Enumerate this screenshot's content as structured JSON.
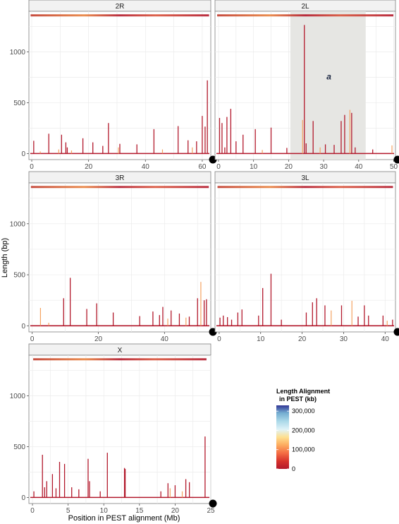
{
  "chart_data": {
    "type": "bar",
    "ylabel": "Length (bp)",
    "xlabel": "Position in PEST alignment (Mb)",
    "yticks": [
      0,
      500,
      1000
    ],
    "legend": {
      "title_lines": [
        "Length Alignment",
        "in PEST (kb)"
      ],
      "ticks": [
        "0",
        "100,000",
        "200,000",
        "300,000"
      ],
      "tick_values": [
        0,
        100000,
        200000,
        300000
      ],
      "max": 330000,
      "placement": "right"
    },
    "panels": [
      {
        "name": "2R",
        "xlim": [
          -1,
          63
        ],
        "ylim": [
          -60,
          1400
        ],
        "xticks": [
          0,
          20,
          40,
          60
        ],
        "top_band_y": 1360,
        "shaded": null,
        "annotation": null,
        "bars": [
          {
            "x": 0.7,
            "y": 125
          },
          {
            "x": 6.0,
            "y": 195
          },
          {
            "x": 10.5,
            "y": 185
          },
          {
            "x": 12.0,
            "y": 110
          },
          {
            "x": 12.5,
            "y": 60
          },
          {
            "x": 18.0,
            "y": 150
          },
          {
            "x": 21.5,
            "y": 110
          },
          {
            "x": 25.0,
            "y": 75
          },
          {
            "x": 27.0,
            "y": 300
          },
          {
            "x": 31.0,
            "y": 95
          },
          {
            "x": 37.0,
            "y": 90
          },
          {
            "x": 43.0,
            "y": 240
          },
          {
            "x": 51.5,
            "y": 270
          },
          {
            "x": 55.0,
            "y": 130
          },
          {
            "x": 58.0,
            "y": 120
          },
          {
            "x": 60.0,
            "y": 370
          },
          {
            "x": 61.0,
            "y": 265
          },
          {
            "x": 61.8,
            "y": 720
          }
        ],
        "light_bars": [
          {
            "x": 3.0,
            "y": 20
          },
          {
            "x": 9.5,
            "y": 40
          },
          {
            "x": 14.0,
            "y": 30
          },
          {
            "x": 30.5,
            "y": 60
          },
          {
            "x": 46.0,
            "y": 40
          },
          {
            "x": 56.5,
            "y": 60
          }
        ]
      },
      {
        "name": "2L",
        "xlim": [
          -1,
          50.5
        ],
        "ylim": [
          -60,
          1400
        ],
        "xticks": [
          0,
          10,
          20,
          30,
          40,
          50
        ],
        "top_band_y": 1360,
        "shaded": [
          20.5,
          42
        ],
        "annotation": {
          "text": "a",
          "x": 31.5,
          "y": 730
        },
        "bars": [
          {
            "x": 0.3,
            "y": 350
          },
          {
            "x": 1.0,
            "y": 300
          },
          {
            "x": 1.8,
            "y": 60
          },
          {
            "x": 2.4,
            "y": 360
          },
          {
            "x": 3.5,
            "y": 440
          },
          {
            "x": 5.0,
            "y": 120
          },
          {
            "x": 7.0,
            "y": 185
          },
          {
            "x": 10.5,
            "y": 240
          },
          {
            "x": 15.0,
            "y": 255
          },
          {
            "x": 19.5,
            "y": 55
          },
          {
            "x": 24.5,
            "y": 1265
          },
          {
            "x": 25.0,
            "y": 100
          },
          {
            "x": 27.0,
            "y": 320
          },
          {
            "x": 30.5,
            "y": 90
          },
          {
            "x": 33.0,
            "y": 85
          },
          {
            "x": 35.0,
            "y": 320
          },
          {
            "x": 36.0,
            "y": 380
          },
          {
            "x": 38.0,
            "y": 400
          },
          {
            "x": 39.0,
            "y": 60
          },
          {
            "x": 44.0,
            "y": 40
          }
        ],
        "light_bars": [
          {
            "x": 12.5,
            "y": 35
          },
          {
            "x": 24.0,
            "y": 330
          },
          {
            "x": 29.0,
            "y": 60
          },
          {
            "x": 37.5,
            "y": 430
          },
          {
            "x": 49.5,
            "y": 80
          }
        ]
      },
      {
        "name": "3R",
        "xlim": [
          -1,
          54
        ],
        "ylim": [
          -60,
          1400
        ],
        "xticks": [
          0,
          20,
          40
        ],
        "top_band_y": 1360,
        "shaded": null,
        "annotation": null,
        "bars": [
          {
            "x": 9.5,
            "y": 270
          },
          {
            "x": 11.5,
            "y": 470
          },
          {
            "x": 16.5,
            "y": 165
          },
          {
            "x": 19.5,
            "y": 220
          },
          {
            "x": 24.5,
            "y": 130
          },
          {
            "x": 32.5,
            "y": 95
          },
          {
            "x": 36.5,
            "y": 140
          },
          {
            "x": 38.5,
            "y": 105
          },
          {
            "x": 39.5,
            "y": 185
          },
          {
            "x": 42.0,
            "y": 150
          },
          {
            "x": 44.5,
            "y": 120
          },
          {
            "x": 47.5,
            "y": 90
          },
          {
            "x": 50.0,
            "y": 270
          },
          {
            "x": 52.0,
            "y": 250
          },
          {
            "x": 52.7,
            "y": 260
          }
        ],
        "light_bars": [
          {
            "x": 2.5,
            "y": 175
          },
          {
            "x": 5.0,
            "y": 30
          },
          {
            "x": 41.0,
            "y": 70
          },
          {
            "x": 46.5,
            "y": 80
          },
          {
            "x": 51.0,
            "y": 430
          }
        ]
      },
      {
        "name": "3L",
        "xlim": [
          -1,
          42.5
        ],
        "ylim": [
          -60,
          1400
        ],
        "xticks": [
          0,
          10,
          20,
          30,
          40
        ],
        "top_band_y": 1360,
        "shaded": null,
        "annotation": null,
        "bars": [
          {
            "x": 0.2,
            "y": 80
          },
          {
            "x": 1.0,
            "y": 100
          },
          {
            "x": 2.0,
            "y": 85
          },
          {
            "x": 3.0,
            "y": 60
          },
          {
            "x": 4.5,
            "y": 130
          },
          {
            "x": 5.5,
            "y": 160
          },
          {
            "x": 9.5,
            "y": 100
          },
          {
            "x": 10.5,
            "y": 370
          },
          {
            "x": 12.5,
            "y": 510
          },
          {
            "x": 15.0,
            "y": 60
          },
          {
            "x": 21.0,
            "y": 130
          },
          {
            "x": 22.5,
            "y": 230
          },
          {
            "x": 23.5,
            "y": 270
          },
          {
            "x": 25.5,
            "y": 200
          },
          {
            "x": 29.5,
            "y": 200
          },
          {
            "x": 33.5,
            "y": 90
          },
          {
            "x": 35.0,
            "y": 200
          },
          {
            "x": 36.0,
            "y": 100
          },
          {
            "x": 39.5,
            "y": 100
          },
          {
            "x": 41.8,
            "y": 60
          }
        ],
        "light_bars": [
          {
            "x": 27.0,
            "y": 150
          },
          {
            "x": 32.0,
            "y": 245
          },
          {
            "x": 40.5,
            "y": 50
          }
        ]
      },
      {
        "name": "X",
        "xlim": [
          -0.5,
          25
        ],
        "ylim": [
          -60,
          1400
        ],
        "xticks": [
          0,
          5,
          10,
          15,
          20,
          25
        ],
        "top_band_y": 1360,
        "shaded": null,
        "annotation": null,
        "bars": [
          {
            "x": 0.2,
            "y": 60
          },
          {
            "x": 1.4,
            "y": 420
          },
          {
            "x": 1.7,
            "y": 100
          },
          {
            "x": 2.0,
            "y": 160
          },
          {
            "x": 2.8,
            "y": 230
          },
          {
            "x": 3.3,
            "y": 90
          },
          {
            "x": 3.8,
            "y": 350
          },
          {
            "x": 4.5,
            "y": 330
          },
          {
            "x": 5.5,
            "y": 100
          },
          {
            "x": 6.5,
            "y": 80
          },
          {
            "x": 7.8,
            "y": 380
          },
          {
            "x": 8.0,
            "y": 160
          },
          {
            "x": 9.5,
            "y": 60
          },
          {
            "x": 10.5,
            "y": 440
          },
          {
            "x": 12.9,
            "y": 290
          },
          {
            "x": 13.0,
            "y": 280
          },
          {
            "x": 18.0,
            "y": 60
          },
          {
            "x": 19.0,
            "y": 140
          },
          {
            "x": 20.0,
            "y": 120
          },
          {
            "x": 21.5,
            "y": 180
          },
          {
            "x": 22.0,
            "y": 150
          },
          {
            "x": 24.2,
            "y": 600
          }
        ],
        "light_bars": [
          {
            "x": 19.3,
            "y": 90
          },
          {
            "x": 21.0,
            "y": 60
          }
        ]
      }
    ]
  }
}
